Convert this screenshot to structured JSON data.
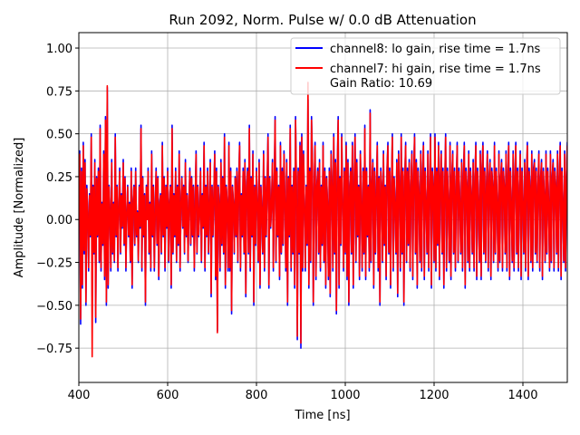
{
  "chart_data": {
    "type": "line",
    "title": "Run 2092, Norm. Pulse w/ 0.0 dB Attenuation",
    "xlabel": "Time [ns]",
    "ylabel": "Amplitude [Normalized]",
    "xlim": [
      400,
      1500
    ],
    "ylim": [
      -0.95,
      1.09
    ],
    "x_ticks": [
      400,
      600,
      800,
      1000,
      1200,
      1400
    ],
    "x_tick_labels": [
      "400",
      "600",
      "800",
      "1000",
      "1200",
      "1400"
    ],
    "y_ticks": [
      -0.75,
      -0.5,
      -0.25,
      0.0,
      0.25,
      0.5,
      0.75,
      1.0
    ],
    "y_tick_labels": [
      "−0.75",
      "−0.50",
      "−0.25",
      "0.00",
      "0.25",
      "0.50",
      "0.75",
      "1.00"
    ],
    "grid": true,
    "legend_position": "top-right",
    "legend_extra_text": "Gain Ratio: 10.69",
    "sample_step_ns": 2,
    "series": [
      {
        "name": "channel8: lo gain, rise time = 1.7ns",
        "color": "#0000ff",
        "x_start": 400,
        "x_step": 2,
        "values": [
          0.1,
          0.4,
          -0.61,
          0.3,
          -0.4,
          0.45,
          -0.2,
          0.35,
          -0.5,
          0.2,
          0.05,
          -0.3,
          0.15,
          -0.1,
          0.5,
          -0.45,
          0.2,
          -0.2,
          0.35,
          -0.6,
          0.25,
          -0.1,
          0.3,
          -0.25,
          0.55,
          -0.3,
          0.1,
          -0.15,
          0.4,
          -0.35,
          0.6,
          -0.5,
          0.77,
          -0.4,
          0.2,
          0.05,
          -0.3,
          0.35,
          -0.2,
          0.1,
          -0.25,
          0.5,
          -0.1,
          0.2,
          -0.3,
          0.1,
          0.3,
          -0.2,
          0.15,
          -0.05,
          0.35,
          -0.15,
          0.25,
          -0.3,
          0.05,
          0.2,
          -0.1,
          0.1,
          -0.25,
          0.3,
          -0.4,
          0.1,
          0.2,
          -0.15,
          0.3,
          -0.1,
          0.05,
          -0.25,
          0.2,
          -0.05,
          0.55,
          -0.3,
          0.25,
          -0.1,
          0.15,
          -0.5,
          0.2,
          0.0,
          0.3,
          -0.2,
          0.1,
          -0.3,
          0.4,
          -0.1,
          0.2,
          -0.3,
          0.05,
          0.3,
          -0.15,
          0.25,
          -0.35,
          0.1,
          0.15,
          -0.2,
          0.45,
          -0.1,
          0.25,
          -0.3,
          0.2,
          -0.05,
          0.3,
          -0.25,
          0.1,
          0.2,
          -0.4,
          0.55,
          -0.2,
          0.15,
          -0.1,
          0.3,
          -0.25,
          0.2,
          -0.15,
          0.4,
          -0.3,
          0.1,
          0.25,
          -0.05,
          0.2,
          -0.2,
          0.35,
          -0.1,
          0.15,
          -0.25,
          0.1,
          0.3,
          -0.15,
          0.25,
          -0.1,
          0.2,
          -0.3,
          0.1,
          0.4,
          -0.2,
          0.2,
          -0.1,
          0.05,
          0.3,
          -0.25,
          0.15,
          -0.05,
          0.45,
          -0.3,
          0.2,
          -0.1,
          0.3,
          -0.2,
          0.1,
          0.35,
          -0.45,
          0.2,
          -0.1,
          0.15,
          0.4,
          -0.35,
          0.3,
          -0.65,
          0.2,
          0.1,
          -0.3,
          0.35,
          -0.15,
          0.25,
          -0.2,
          0.5,
          -0.4,
          0.2,
          0.1,
          -0.3,
          0.45,
          -0.3,
          0.3,
          -0.55,
          0.2,
          0.1,
          -0.2,
          0.25,
          -0.1,
          0.3,
          -0.25,
          0.2,
          0.45,
          -0.3,
          0.15,
          -0.1,
          0.3,
          -0.2,
          0.35,
          -0.45,
          0.2,
          0.3,
          -0.2,
          0.55,
          -0.3,
          0.25,
          -0.1,
          0.4,
          -0.5,
          0.2,
          -0.15,
          0.3,
          0.1,
          -0.25,
          0.35,
          -0.4,
          0.2,
          0.05,
          -0.2,
          0.4,
          -0.3,
          0.25,
          -0.1,
          0.2,
          0.5,
          -0.4,
          0.25,
          -0.05,
          0.1,
          0.35,
          -0.3,
          0.2,
          0.6,
          -0.25,
          0.3,
          -0.1,
          0.2,
          -0.35,
          0.45,
          -0.2,
          0.3,
          -0.15,
          0.4,
          0.1,
          -0.3,
          0.35,
          -0.5,
          0.25,
          -0.1,
          0.55,
          -0.3,
          0.2,
          -0.2,
          0.3,
          -0.4,
          0.6,
          0.2,
          -0.7,
          0.3,
          -0.2,
          0.45,
          -0.75,
          0.5,
          -0.3,
          0.4,
          0.1,
          -0.3,
          0.2,
          -0.15,
          0.7,
          -0.4,
          0.3,
          -0.25,
          0.6,
          0.35,
          -0.5,
          0.2,
          0.45,
          -0.35,
          0.2,
          0.3,
          -0.2,
          0.35,
          -0.3,
          0.2,
          -0.15,
          0.45,
          -0.25,
          0.3,
          -0.4,
          0.25,
          0.1,
          -0.35,
          0.3,
          -0.45,
          0.4,
          0.2,
          -0.3,
          0.5,
          -0.2,
          0.35,
          -0.55,
          0.3,
          0.6,
          -0.4,
          0.25,
          -0.15,
          0.5,
          0.1,
          -0.3,
          0.3,
          -0.2,
          0.45,
          -0.35,
          0.35,
          -0.5,
          0.2,
          0.3,
          -0.2,
          0.45,
          -0.4,
          0.2,
          0.5,
          -0.25,
          0.35,
          -0.1,
          0.2,
          -0.35,
          0.4,
          0.1,
          -0.3,
          0.3,
          -0.2,
          0.55,
          -0.35,
          0.3,
          -0.1,
          0.2,
          -0.3,
          0.64,
          -0.25,
          0.2,
          0.35,
          -0.4,
          0.3,
          -0.2,
          0.15,
          0.45,
          -0.3,
          0.25,
          -0.5,
          0.3,
          0.2,
          -0.25,
          0.4,
          -0.15,
          0.2,
          -0.35,
          0.3,
          0.45,
          -0.2,
          0.3,
          -0.4,
          0.2,
          0.5,
          -0.3,
          0.25,
          0.1,
          -0.2,
          0.35,
          -0.45,
          0.4,
          0.2,
          -0.3,
          0.5,
          -0.2,
          0.3,
          -0.5,
          0.25,
          0.45,
          -0.25,
          0.3,
          -0.15,
          0.35,
          -0.3,
          0.2,
          0.4,
          -0.35,
          0.25,
          0.5,
          -0.2,
          0.35,
          -0.4,
          0.3,
          0.15,
          -0.25,
          0.4,
          -0.3,
          0.25,
          0.45,
          -0.35,
          0.3,
          0.1,
          -0.2,
          0.4,
          -0.3,
          0.2,
          0.5,
          -0.4,
          0.3,
          0.2,
          -0.25,
          0.5,
          -0.3,
          0.3,
          -0.15,
          0.45,
          -0.35,
          0.25,
          0.4,
          -0.2,
          0.3,
          -0.4,
          0.2,
          0.5,
          -0.3,
          0.3,
          0.1,
          -0.25,
          0.45,
          -0.35,
          0.25,
          0.4,
          -0.2,
          0.3,
          -0.3,
          0.2,
          0.45,
          -0.25,
          0.3,
          0.1,
          -0.2,
          0.35,
          -0.3,
          0.25,
          0.45,
          -0.4,
          0.3,
          0.2,
          -0.25,
          0.4,
          -0.3,
          0.3,
          0.15,
          -0.2,
          0.35,
          -0.3,
          0.25,
          0.45,
          -0.35,
          0.3,
          0.1,
          -0.25,
          0.4,
          -0.35,
          0.3,
          0.45,
          -0.2,
          0.3,
          -0.25,
          0.2,
          0.4,
          -0.3,
          0.25,
          0.35,
          -0.35,
          0.3,
          0.2,
          -0.25,
          0.45,
          -0.2,
          0.3,
          0.1,
          -0.3,
          0.4,
          -0.25,
          0.25,
          0.35,
          -0.3,
          0.3,
          0.2,
          -0.2,
          0.4,
          -0.3,
          0.25,
          0.45,
          -0.35,
          0.3,
          0.1,
          -0.25,
          0.4,
          -0.3,
          0.25,
          0.45,
          -0.2,
          0.3,
          -0.3,
          0.2,
          0.4,
          -0.35,
          0.3,
          0.1,
          -0.2,
          0.35,
          -0.3,
          0.25,
          0.45,
          -0.35,
          0.3,
          0.2,
          -0.25,
          0.4,
          -0.3,
          0.3,
          0.35,
          -0.2,
          0.3,
          -0.25,
          0.2,
          0.4,
          -0.3,
          0.25,
          0.35,
          -0.35,
          0.3,
          0.15,
          -0.25,
          0.4,
          -0.2,
          0.3,
          0.1,
          -0.3,
          0.4,
          -0.25,
          0.25,
          0.35,
          -0.3,
          0.3,
          0.2,
          -0.2,
          0.4,
          -0.3,
          0.25,
          0.45,
          -0.35,
          0.3,
          0.1,
          -0.25,
          0.4,
          -0.3,
          0.25,
          0.45,
          -0.2,
          0.3,
          -0.3,
          0.2,
          0.4,
          -0.35,
          0.3,
          0.1,
          -0.2
        ]
      },
      {
        "name": "channel7: hi gain, rise time = 1.7ns",
        "color": "#ff0000",
        "x_start": 400,
        "x_step": 2,
        "values": [
          0.08,
          0.38,
          -0.58,
          0.28,
          -0.38,
          0.43,
          -0.18,
          0.33,
          -0.48,
          0.18,
          0.04,
          -0.28,
          0.14,
          -0.09,
          0.48,
          -0.8,
          0.19,
          -0.19,
          0.33,
          -0.57,
          0.24,
          -0.09,
          0.28,
          -0.24,
          0.53,
          -0.28,
          0.09,
          -0.14,
          0.38,
          -0.33,
          0.58,
          -0.48,
          0.78,
          -0.38,
          0.19,
          0.04,
          -0.28,
          0.33,
          -0.19,
          0.09,
          -0.24,
          0.48,
          -0.09,
          0.19,
          -0.28,
          0.09,
          0.28,
          -0.19,
          0.14,
          -0.04,
          0.33,
          -0.14,
          0.24,
          -0.28,
          0.04,
          0.19,
          -0.09,
          0.09,
          -0.24,
          0.28,
          -0.38,
          0.09,
          0.19,
          -0.14,
          0.28,
          -0.09,
          0.04,
          -0.24,
          0.19,
          -0.04,
          0.53,
          -0.28,
          0.24,
          -0.09,
          0.14,
          -0.48,
          0.19,
          0.0,
          0.28,
          -0.19,
          0.09,
          -0.28,
          0.38,
          -0.09,
          0.19,
          -0.28,
          0.04,
          0.28,
          -0.14,
          0.24,
          -0.33,
          0.09,
          0.14,
          -0.19,
          0.43,
          -0.09,
          0.24,
          -0.28,
          0.19,
          -0.04,
          0.28,
          -0.24,
          0.09,
          0.19,
          -0.38,
          0.53,
          -0.19,
          0.14,
          -0.09,
          0.28,
          -0.24,
          0.19,
          -0.14,
          0.38,
          -0.28,
          0.09,
          0.24,
          -0.04,
          0.19,
          -0.19,
          0.33,
          -0.09,
          0.14,
          -0.24,
          0.09,
          0.28,
          -0.14,
          0.24,
          -0.09,
          0.19,
          -0.28,
          0.09,
          0.38,
          -0.19,
          0.19,
          -0.09,
          0.04,
          0.28,
          -0.24,
          0.14,
          -0.04,
          0.43,
          -0.28,
          0.19,
          -0.09,
          0.28,
          -0.19,
          0.09,
          0.33,
          -0.43,
          0.19,
          -0.09,
          0.14,
          0.38,
          -0.33,
          0.28,
          -0.66,
          0.19,
          0.09,
          -0.28,
          0.33,
          -0.14,
          0.24,
          -0.19,
          0.48,
          -0.38,
          0.19,
          0.09,
          -0.28,
          0.43,
          -0.28,
          0.28,
          -0.53,
          0.19,
          0.09,
          -0.19,
          0.24,
          -0.09,
          0.28,
          -0.24,
          0.19,
          0.43,
          -0.28,
          0.14,
          -0.09,
          0.28,
          -0.19,
          0.33,
          -0.43,
          0.19,
          0.28,
          -0.19,
          0.53,
          -0.28,
          0.24,
          -0.09,
          0.38,
          -0.48,
          0.19,
          -0.14,
          0.28,
          0.09,
          -0.24,
          0.33,
          -0.38,
          0.19,
          0.04,
          -0.19,
          0.38,
          -0.28,
          0.24,
          -0.09,
          0.19,
          0.48,
          -0.38,
          0.24,
          -0.04,
          0.09,
          0.33,
          -0.28,
          0.19,
          0.58,
          -0.24,
          0.28,
          -0.09,
          0.19,
          -0.33,
          0.43,
          -0.19,
          0.28,
          -0.14,
          0.38,
          0.09,
          -0.28,
          0.33,
          -0.48,
          0.24,
          -0.09,
          0.53,
          -0.28,
          0.19,
          -0.19,
          0.28,
          -0.38,
          0.58,
          0.19,
          -0.68,
          0.28,
          -0.19,
          0.43,
          -0.72,
          0.48,
          -0.28,
          0.38,
          0.09,
          -0.28,
          0.19,
          -0.14,
          0.8,
          -0.38,
          0.28,
          -0.24,
          0.58,
          0.33,
          -0.48,
          0.19,
          0.43,
          -0.33,
          0.19,
          0.28,
          -0.19,
          0.33,
          -0.28,
          0.19,
          -0.14,
          0.43,
          -0.24,
          0.28,
          -0.38,
          0.24,
          0.09,
          -0.33,
          0.28,
          -0.43,
          0.38,
          0.19,
          -0.28,
          0.48,
          -0.19,
          0.33,
          -0.53,
          0.28,
          0.58,
          -0.38,
          0.24,
          -0.14,
          0.48,
          0.09,
          -0.28,
          0.28,
          -0.19,
          0.43,
          -0.33,
          0.33,
          -0.48,
          0.19,
          0.28,
          -0.19,
          0.43,
          -0.38,
          0.19,
          0.48,
          -0.24,
          0.33,
          -0.09,
          0.19,
          -0.33,
          0.38,
          0.09,
          -0.28,
          0.28,
          -0.19,
          0.53,
          -0.33,
          0.28,
          -0.09,
          0.19,
          -0.28,
          0.62,
          -0.24,
          0.19,
          0.33,
          -0.38,
          0.28,
          -0.19,
          0.14,
          0.43,
          -0.28,
          0.24,
          -0.48,
          0.28,
          0.19,
          -0.24,
          0.38,
          -0.14,
          0.19,
          -0.33,
          0.28,
          0.43,
          -0.19,
          0.28,
          -0.38,
          0.19,
          0.48,
          -0.28,
          0.24,
          0.09,
          -0.19,
          0.33,
          -0.43,
          0.38,
          0.19,
          -0.28,
          0.48,
          -0.19,
          0.28,
          -0.48,
          0.24,
          0.43,
          -0.24,
          0.28,
          -0.14,
          0.33,
          -0.28,
          0.19,
          0.38,
          -0.33,
          0.24,
          0.48,
          -0.19,
          0.33,
          -0.38,
          0.28,
          0.14,
          -0.24,
          0.38,
          -0.28,
          0.24,
          0.43,
          -0.33,
          0.28,
          0.09,
          -0.19,
          0.38,
          -0.28,
          0.19,
          0.48,
          -0.38,
          0.28,
          0.19,
          -0.24,
          0.48,
          -0.28,
          0.28,
          -0.14,
          0.43,
          -0.33,
          0.24,
          0.38,
          -0.19,
          0.28,
          -0.38,
          0.19,
          0.48,
          -0.28,
          0.28,
          0.09,
          -0.24,
          0.43,
          -0.33,
          0.24,
          0.38,
          -0.19,
          0.28,
          -0.28,
          0.19,
          0.43,
          -0.24,
          0.28,
          0.09,
          -0.19,
          0.33,
          -0.28,
          0.24,
          0.43,
          -0.38,
          0.28,
          0.19,
          -0.24,
          0.38,
          -0.28,
          0.28,
          0.14,
          -0.19,
          0.33,
          -0.28,
          0.24,
          0.43,
          -0.33,
          0.28,
          0.09,
          -0.24,
          0.38,
          -0.33,
          0.28,
          0.43,
          -0.19,
          0.28,
          -0.24,
          0.19,
          0.38,
          -0.28,
          0.24,
          0.33,
          -0.33,
          0.28,
          0.19,
          -0.24,
          0.43,
          -0.19,
          0.28,
          0.09,
          -0.28,
          0.38,
          -0.24,
          0.24,
          0.33,
          -0.28,
          0.28,
          0.19,
          -0.19,
          0.38,
          -0.28,
          0.24,
          0.43,
          -0.33,
          0.28,
          0.09,
          -0.24,
          0.38,
          -0.28,
          0.24,
          0.43,
          -0.19,
          0.28,
          -0.28,
          0.19,
          0.38,
          -0.33,
          0.28,
          0.09,
          -0.19,
          0.33,
          -0.28,
          0.24,
          0.43,
          -0.33,
          0.28,
          0.19,
          -0.24,
          0.38,
          -0.28,
          0.28,
          0.33,
          -0.19,
          0.28,
          -0.24,
          0.19,
          0.38,
          -0.28,
          0.24,
          0.33,
          -0.33,
          0.28,
          0.14,
          -0.24,
          0.38,
          -0.19,
          0.28,
          0.09,
          -0.28,
          0.38,
          -0.24,
          0.24,
          0.33,
          -0.28,
          0.28,
          0.19,
          -0.19,
          0.38,
          -0.28,
          0.24,
          0.43,
          -0.33,
          0.28,
          0.09,
          -0.24,
          0.38,
          -0.28,
          0.24,
          0.43,
          -0.19,
          0.28,
          -0.28,
          0.19,
          0.38,
          -0.33,
          0.28,
          0.09,
          -0.19
        ]
      }
    ]
  }
}
